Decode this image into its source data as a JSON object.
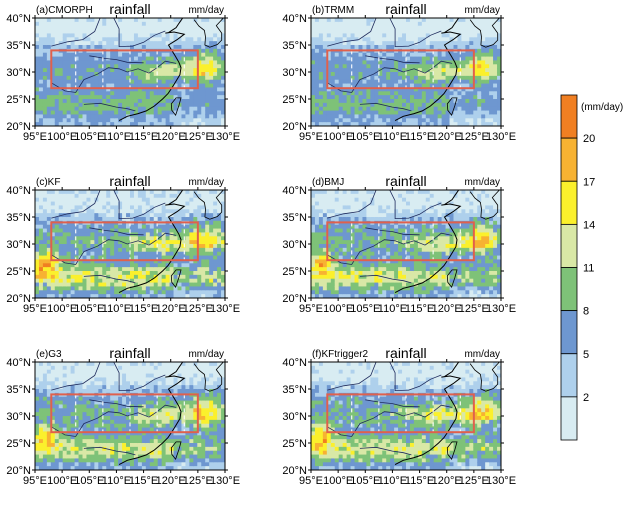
{
  "colorbar": {
    "unit_label": "(mm/day)",
    "ticks": [
      "2",
      "5",
      "8",
      "11",
      "14",
      "17",
      "20"
    ],
    "colors": [
      "#d8ecf2",
      "#aed0ec",
      "#6e97d0",
      "#7ec278",
      "#d9e8a6",
      "#fbf02c",
      "#f7b232",
      "#f07f22"
    ]
  },
  "region_box": {
    "lon": [
      98,
      125
    ],
    "lat": [
      27,
      34
    ],
    "color": "#e0604c"
  },
  "dashed_meridians": [
    102.5,
    107.5,
    112.5,
    117.5,
    122.5
  ],
  "x_tick_labels": [
    "95°E",
    "100°E",
    "105°E",
    "110°E",
    "115°E",
    "120°E",
    "125°E",
    "130°E"
  ],
  "y_tick_labels": [
    "20°N",
    "25°N",
    "30°N",
    "35°N",
    "40°N"
  ],
  "panels": [
    {
      "label": "(a)CMORPH",
      "title": "rainfall",
      "units": "mm/day",
      "intensity": 0.35
    },
    {
      "label": "(b)TRMM",
      "title": "rainfall",
      "units": "mm/day",
      "intensity": 0.35
    },
    {
      "label": "(c)KF",
      "title": "rainfall",
      "units": "mm/day",
      "intensity": 0.85
    },
    {
      "label": "(d)BMJ",
      "title": "rainfall",
      "units": "mm/day",
      "intensity": 0.75
    },
    {
      "label": "(e)G3",
      "title": "rainfall",
      "units": "mm/day",
      "intensity": 0.7
    },
    {
      "label": "(f)KFtrigger2",
      "title": "rainfall",
      "units": "mm/day",
      "intensity": 0.75
    }
  ]
}
